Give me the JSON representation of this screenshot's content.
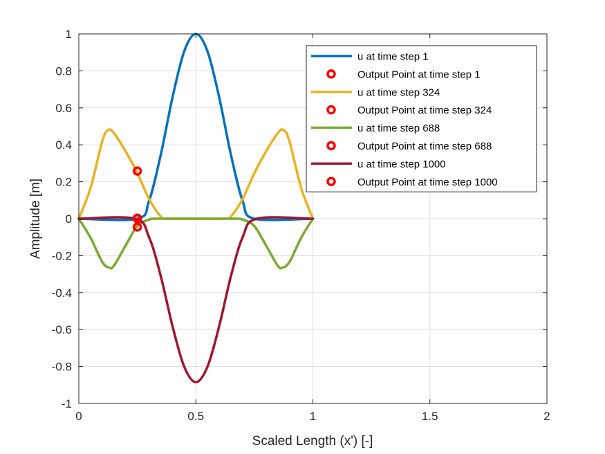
{
  "chart_data": {
    "type": "line",
    "title": "",
    "xlabel": "Scaled Length (x') [-]",
    "ylabel": "Amplitude [m]",
    "xlim": [
      0,
      2
    ],
    "ylim": [
      -1,
      1
    ],
    "xticks": [
      0,
      0.5,
      1,
      1.5,
      2
    ],
    "xtick_labels": [
      "0",
      "0.5",
      "1",
      "1.5",
      "2"
    ],
    "yticks": [
      -1,
      -0.8,
      -0.6,
      -0.4,
      -0.2,
      0,
      0.2,
      0.4,
      0.6,
      0.8,
      1
    ],
    "ytick_labels": [
      "-1",
      "-0.8",
      "-0.6",
      "-0.4",
      "-0.2",
      "0",
      "0.2",
      "0.4",
      "0.6",
      "0.8",
      "1"
    ],
    "grid": true,
    "legend_position": "top-right",
    "series": [
      {
        "name": "u at time step 1",
        "color": "#0072BD",
        "x": [
          0,
          0.25,
          0.3,
          0.35,
          0.4,
          0.45,
          0.5,
          0.55,
          0.6,
          0.65,
          0.7,
          0.75,
          1
        ],
        "y": [
          0,
          0,
          0.096,
          0.345,
          0.655,
          0.905,
          1,
          0.905,
          0.655,
          0.345,
          0.096,
          0,
          0
        ]
      },
      {
        "name": "u at time step 324",
        "color": "#EDB120",
        "x": [
          0,
          0.05,
          0.1,
          0.125,
          0.15,
          0.2,
          0.25,
          0.3,
          0.35,
          0.375,
          0.625,
          0.65,
          0.7,
          0.75,
          0.8,
          0.85,
          0.875,
          0.9,
          0.95,
          1
        ],
        "y": [
          0,
          0.166,
          0.419,
          0.48,
          0.463,
          0.364,
          0.247,
          0.107,
          0.012,
          0,
          0,
          0.012,
          0.107,
          0.247,
          0.364,
          0.463,
          0.48,
          0.419,
          0.166,
          0
        ]
      },
      {
        "name": "u at time step 688",
        "color": "#77AC30",
        "x": [
          0,
          0.05,
          0.1,
          0.13,
          0.15,
          0.2,
          0.25,
          0.3,
          0.35,
          0.65,
          0.7,
          0.75,
          0.8,
          0.85,
          0.87,
          0.9,
          0.95,
          1
        ],
        "y": [
          0,
          -0.103,
          -0.234,
          -0.265,
          -0.255,
          -0.145,
          -0.04,
          -0.005,
          0,
          0,
          -0.005,
          -0.04,
          -0.145,
          -0.255,
          -0.265,
          -0.234,
          -0.103,
          0
        ]
      },
      {
        "name": "u at time step 1000",
        "color": "#A2142F",
        "x": [
          0,
          0.24,
          0.3,
          0.35,
          0.4,
          0.45,
          0.5,
          0.55,
          0.6,
          0.65,
          0.7,
          0.76,
          1
        ],
        "y": [
          0,
          0,
          -0.1,
          -0.31,
          -0.58,
          -0.8,
          -0.885,
          -0.8,
          -0.58,
          -0.31,
          -0.1,
          0,
          0
        ]
      }
    ],
    "output_points": [
      {
        "name": "Output Point at time step 1",
        "x": 0.25,
        "y": 0
      },
      {
        "name": "Output Point at time step 324",
        "x": 0.25,
        "y": 0.258
      },
      {
        "name": "Output Point at time step 688",
        "x": 0.25,
        "y": -0.045
      },
      {
        "name": "Output Point at time step 1000",
        "x": 0.25,
        "y": 0.003
      }
    ],
    "output_point_color": "#FF0000"
  }
}
